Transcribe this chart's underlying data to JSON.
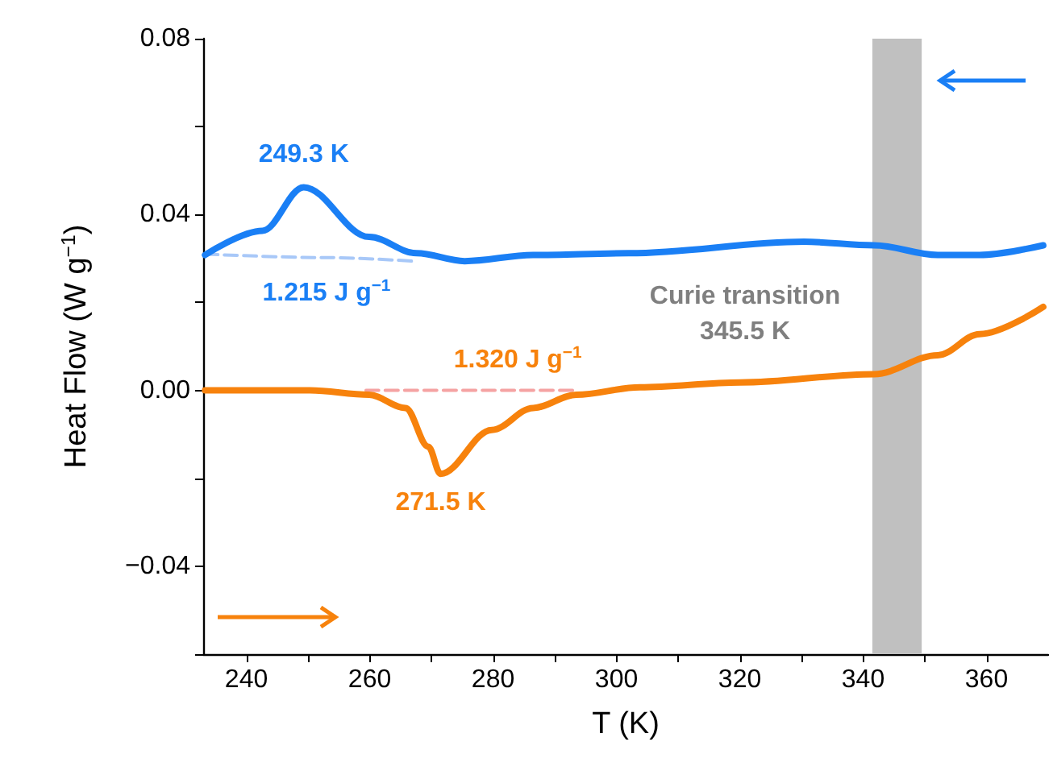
{
  "chart_data": {
    "type": "line",
    "xlabel": "T (K)",
    "ylabel": "Heat Flow (W g$^{−1}$)",
    "xlim": [
      233,
      370
    ],
    "ylim": [
      -0.06,
      0.08
    ],
    "xticks": [
      240,
      {
        "value": 250,
        "label": null
      },
      260,
      {
        "value": 270,
        "label": null
      },
      280,
      {
        "value": 290,
        "label": null
      },
      300,
      {
        "value": 310,
        "label": null
      },
      320,
      {
        "value": 330,
        "label": null
      },
      340,
      {
        "value": 350,
        "label": null
      },
      360
    ],
    "yticks": [
      {
        "value": -0.06,
        "label": null
      },
      {
        "value": -0.04,
        "label": "−0.04"
      },
      {
        "value": -0.02,
        "label": null
      },
      {
        "value": 0,
        "label": "0.00"
      },
      {
        "value": 0.02,
        "label": null
      },
      {
        "value": 0.04,
        "label": "0.04"
      },
      {
        "value": 0.06,
        "label": null
      },
      {
        "value": 0.08,
        "label": "0.08"
      }
    ],
    "grid": false,
    "line_style": "solid",
    "series": [
      {
        "color": "#1a7ff5",
        "x": [
          233.3,
          242.6,
          249.3,
          259.9,
          267.6,
          275.4,
          286.5,
          302,
          330.4,
          341.8,
          352.1,
          358.9,
          369.2
        ],
        "values": [
          0.0308,
          0.0363,
          0.0462,
          0.0349,
          0.0312,
          0.0294,
          0.0308,
          0.0312,
          0.0338,
          0.033,
          0.0308,
          0.0308,
          0.033
        ]
      },
      {
        "color": "#f7820c",
        "x": [
          233.3,
          250.3,
          259.9,
          265.8,
          269.5,
          271.5,
          279.8,
          286.5,
          293.5,
          303.8,
          320.1,
          341.8,
          352.1,
          358.9,
          369.2
        ],
        "values": [
          0,
          0,
          -0.001,
          -0.004,
          -0.0128,
          -0.019,
          -0.009,
          -0.004,
          -0.001,
          0.0007,
          0.0018,
          0.0037,
          0.008,
          0.0128,
          0.019
        ]
      },
      {
        "color": "#a8c8f8",
        "line_style": "dashed",
        "x": [
          233.3,
          253,
          267
        ],
        "values": [
          0.031,
          0.0302,
          0.0294
        ]
      },
      {
        "color": "#f5a3a3",
        "line_style": "dashed",
        "x": [
          259.4,
          284,
          293
        ],
        "values": [
          0,
          0,
          0
        ]
      }
    ],
    "annotations": [
      {
        "text": "249.3 K",
        "x": 249.3,
        "y": 0.0462
      },
      {
        "text": "1.215 J g$^{−1}$",
        "x": 253,
        "y": 0.0302
      },
      {
        "text": "1.320 J g$^{−1}$",
        "x": 284,
        "y": 0
      },
      {
        "text": "271.5 K",
        "x": 271.5,
        "y": -0.019
      }
    ],
    "bands": [
      {
        "axis": "x",
        "from": 341.5,
        "to": 349.5,
        "label": "Curie transition\n345.5 K",
        "color": "#c0c0c0"
      }
    ]
  }
}
